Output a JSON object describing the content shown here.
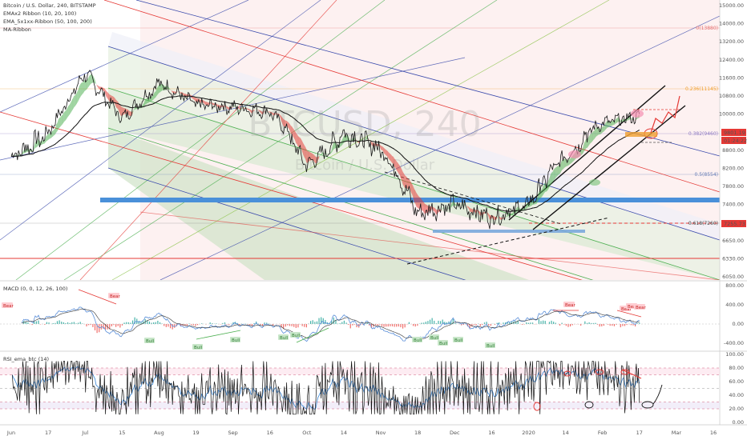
{
  "header": {
    "symbol_line": "Bitcoin / U.S. Dollar, 240, BITSTAMP",
    "indicators": [
      "EMAx2 Ribbon (10, 20, 100)",
      "EMA_5x1xx-Ribbon (50, 100, 200)",
      "MA-Ribbon"
    ]
  },
  "watermark": {
    "symbol": "BTCUSD, 240",
    "name": "Bitcoin / U.S. Dollar"
  },
  "price_panel": {
    "axis_ticks": [
      "15000.00",
      "14000.00",
      "13200.00",
      "12400.00",
      "11600.00",
      "10800.00",
      "10000.00",
      "9200.00",
      "8800.00",
      "8200.00",
      "7800.00",
      "7400.00",
      "7000.00",
      "6650.00",
      "6330.00",
      "6050.00"
    ],
    "fib_labels": [
      {
        "text": "0(13880)",
        "color": "#e57373"
      },
      {
        "text": "0.236(11145)",
        "color": "#f0a030"
      },
      {
        "text": "0.382(9460)",
        "color": "#8e7cc3"
      },
      {
        "text": "0.5(8554)",
        "color": "#6a80b8"
      },
      {
        "text": "0.618(7260)",
        "color": "#444444"
      }
    ],
    "price_tags": [
      {
        "text": "9801.19",
        "color": "#e53935"
      },
      {
        "text": "01:24:22",
        "color": "#e53935"
      },
      {
        "text": "7255.73",
        "color": "#e53935"
      }
    ]
  },
  "macd_panel": {
    "title": "MACD (0, 0, 12, 26, 100)",
    "axis_ticks": [
      "800.00",
      "400.00",
      "0.00",
      "-400.00"
    ],
    "bear_labels": [
      "Bear",
      "Bear",
      "Bear",
      "Bear",
      "Bear",
      "Bear"
    ],
    "bull_labels": [
      "Bull",
      "Bull",
      "Bull",
      "Bull",
      "Bull",
      "Bull",
      "Bull",
      "Bull",
      "Bull",
      "Bull"
    ]
  },
  "rsi_panel": {
    "title": "RSI_ema_btc (14)",
    "axis_ticks": [
      "100.00",
      "80.00",
      "60.00",
      "40.00",
      "20.00",
      "0.00"
    ]
  },
  "x_axis": {
    "labels": [
      "Jun",
      "17",
      "Jul",
      "15",
      "Aug",
      "19",
      "Sep",
      "16",
      "Oct",
      "14",
      "Nov",
      "18",
      "Dec",
      "16",
      "2020",
      "14",
      "Feb",
      "17",
      "Mar",
      "16"
    ]
  },
  "colors": {
    "bull": "#26a69a",
    "bear": "#ef5350",
    "ribbon_green": "#4caf50",
    "ribbon_red": "#e53935",
    "support_blue": "#4a90d9",
    "support_red": "#e53935"
  },
  "chart_data": {
    "type": "line",
    "title": "Bitcoin / U.S. Dollar, 240, BITSTAMP",
    "series": [
      {
        "name": "BTCUSD",
        "x": [
          "Jun",
          "17",
          "Jul",
          "15",
          "Aug",
          "19",
          "Sep",
          "16",
          "Oct",
          "14",
          "Nov",
          "18",
          "Dec",
          "16",
          "2020",
          "14",
          "Feb",
          "17"
        ],
        "values": [
          8600,
          9200,
          11800,
          9800,
          11400,
          10400,
          10300,
          10100,
          8300,
          9200,
          8800,
          7200,
          7400,
          7100,
          7400,
          8600,
          9600,
          9900
        ]
      }
    ],
    "ylim": [
      6050,
      15000
    ],
    "horizontal_levels": [
      7800,
      7255.73,
      6440
    ],
    "macd_ylim": [
      -600,
      900
    ],
    "rsi_ylim": [
      0,
      100
    ],
    "rsi_bands": [
      20,
      30,
      70,
      80
    ]
  }
}
